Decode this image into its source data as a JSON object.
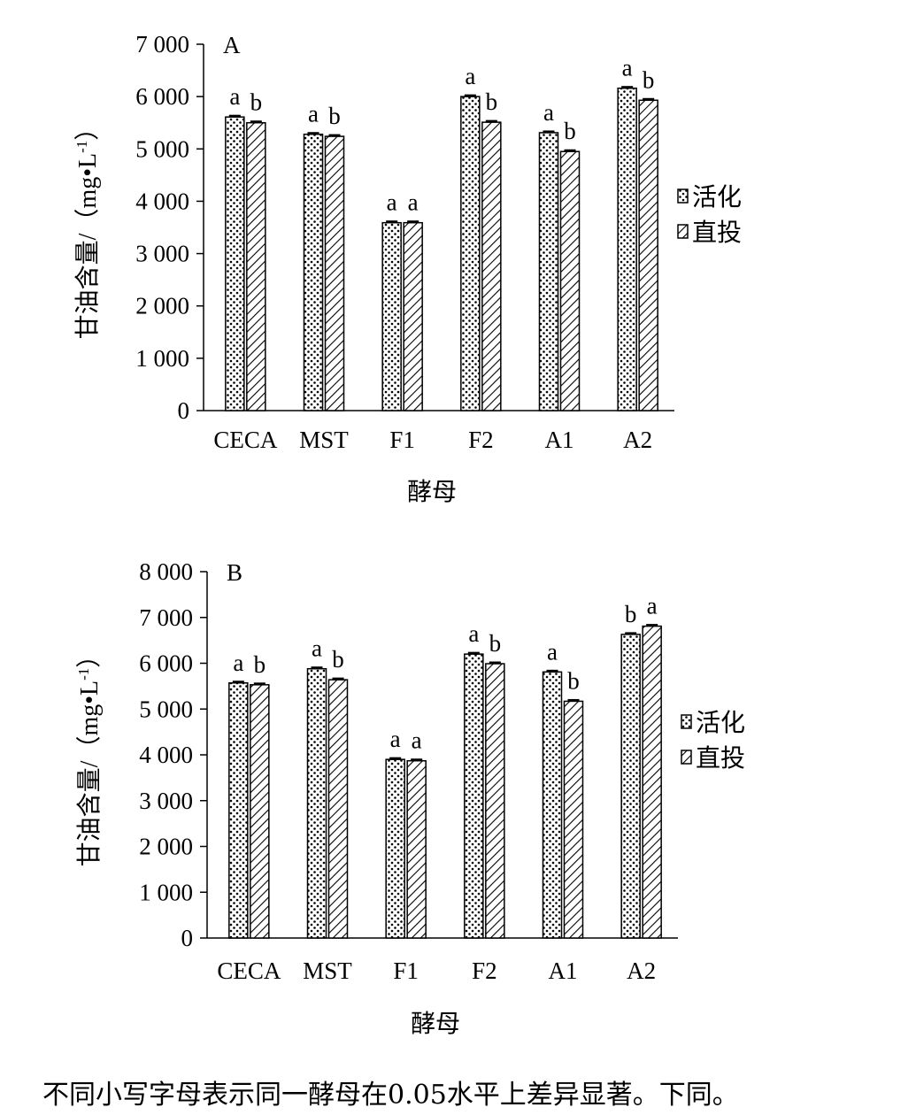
{
  "chart_data": [
    {
      "type": "bar",
      "panel_label": "A",
      "categories": [
        "CECA",
        "MST",
        "F1",
        "F2",
        "A1",
        "A2"
      ],
      "series": [
        {
          "name": "活化",
          "pattern": "dots",
          "values": [
            5610,
            5280,
            3590,
            6000,
            5310,
            6160
          ],
          "letters": [
            "a",
            "a",
            "a",
            "a",
            "a",
            "a"
          ]
        },
        {
          "name": "直投",
          "pattern": "hatch",
          "values": [
            5500,
            5240,
            3590,
            5510,
            4950,
            5930
          ],
          "letters": [
            "b",
            "b",
            "a",
            "b",
            "b",
            "b"
          ]
        }
      ],
      "ylim": [
        0,
        7000
      ],
      "yticks": [
        0,
        1000,
        2000,
        3000,
        4000,
        5000,
        6000,
        7000
      ],
      "ytick_labels": [
        "0",
        "1 000",
        "2 000",
        "3 000",
        "4 000",
        "5 000",
        "6 000",
        "7 000"
      ],
      "xlabel": "酵母",
      "ylabel": "甘油含量/（mg•L-1）",
      "legend_position": "right",
      "grid": false
    },
    {
      "type": "bar",
      "panel_label": "B",
      "categories": [
        "CECA",
        "MST",
        "F1",
        "F2",
        "A1",
        "A2"
      ],
      "series": [
        {
          "name": "活化",
          "pattern": "dots",
          "values": [
            5570,
            5880,
            3900,
            6200,
            5810,
            6630
          ],
          "letters": [
            "a",
            "a",
            "a",
            "a",
            "a",
            "b"
          ]
        },
        {
          "name": "直投",
          "pattern": "hatch",
          "values": [
            5530,
            5640,
            3870,
            5990,
            5170,
            6810
          ],
          "letters": [
            "b",
            "b",
            "a",
            "b",
            "b",
            "a"
          ]
        }
      ],
      "ylim": [
        0,
        8000
      ],
      "yticks": [
        0,
        1000,
        2000,
        3000,
        4000,
        5000,
        6000,
        7000,
        8000
      ],
      "ytick_labels": [
        "0",
        "1 000",
        "2 000",
        "3 000",
        "4 000",
        "5 000",
        "6 000",
        "7 000",
        "8 000"
      ],
      "xlabel": "酵母",
      "ylabel": "甘油含量/（mg•L-1）",
      "legend_position": "right",
      "grid": false
    }
  ],
  "caption": "不同小写字母表示同一酵母在0.05水平上差异显著。下同。"
}
